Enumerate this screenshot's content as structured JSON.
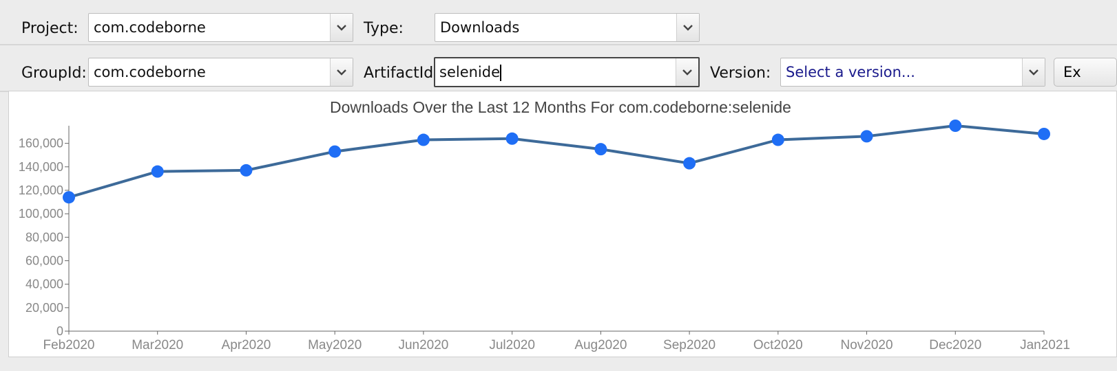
{
  "toolbar1": {
    "project_label": "Project:",
    "project_value": "com.codeborne",
    "type_label": "Type:",
    "type_value": "Downloads"
  },
  "toolbar2": {
    "groupid_label": "GroupId:",
    "groupid_value": "com.codeborne",
    "artifactid_label": "ArtifactId:",
    "artifactid_value": "selenide",
    "version_label": "Version:",
    "version_placeholder": "Select a version...",
    "export_button": "Ex"
  },
  "colors": {
    "line": "#3d6a99",
    "marker": "#1f6ef5",
    "version_text": "#1a1a8c"
  },
  "chart_data": {
    "type": "line",
    "title": "Downloads Over the Last 12 Months For com.codeborne:selenide",
    "xlabel": "",
    "ylabel": "",
    "categories": [
      "Feb2020",
      "Mar2020",
      "Apr2020",
      "May2020",
      "Jun2020",
      "Jul2020",
      "Aug2020",
      "Sep2020",
      "Oct2020",
      "Nov2020",
      "Dec2020",
      "Jan2021"
    ],
    "series": [
      {
        "values": [
          114000,
          136000,
          137000,
          153000,
          163000,
          164000,
          155000,
          143000,
          163000,
          166000,
          175000,
          168000
        ]
      }
    ],
    "ylim": [
      0,
      175000
    ],
    "yticks": [
      "0",
      "20,000",
      "40,000",
      "60,000",
      "80,000",
      "100,000",
      "120,000",
      "140,000",
      "160,000"
    ],
    "grid": false,
    "legend": "none"
  }
}
